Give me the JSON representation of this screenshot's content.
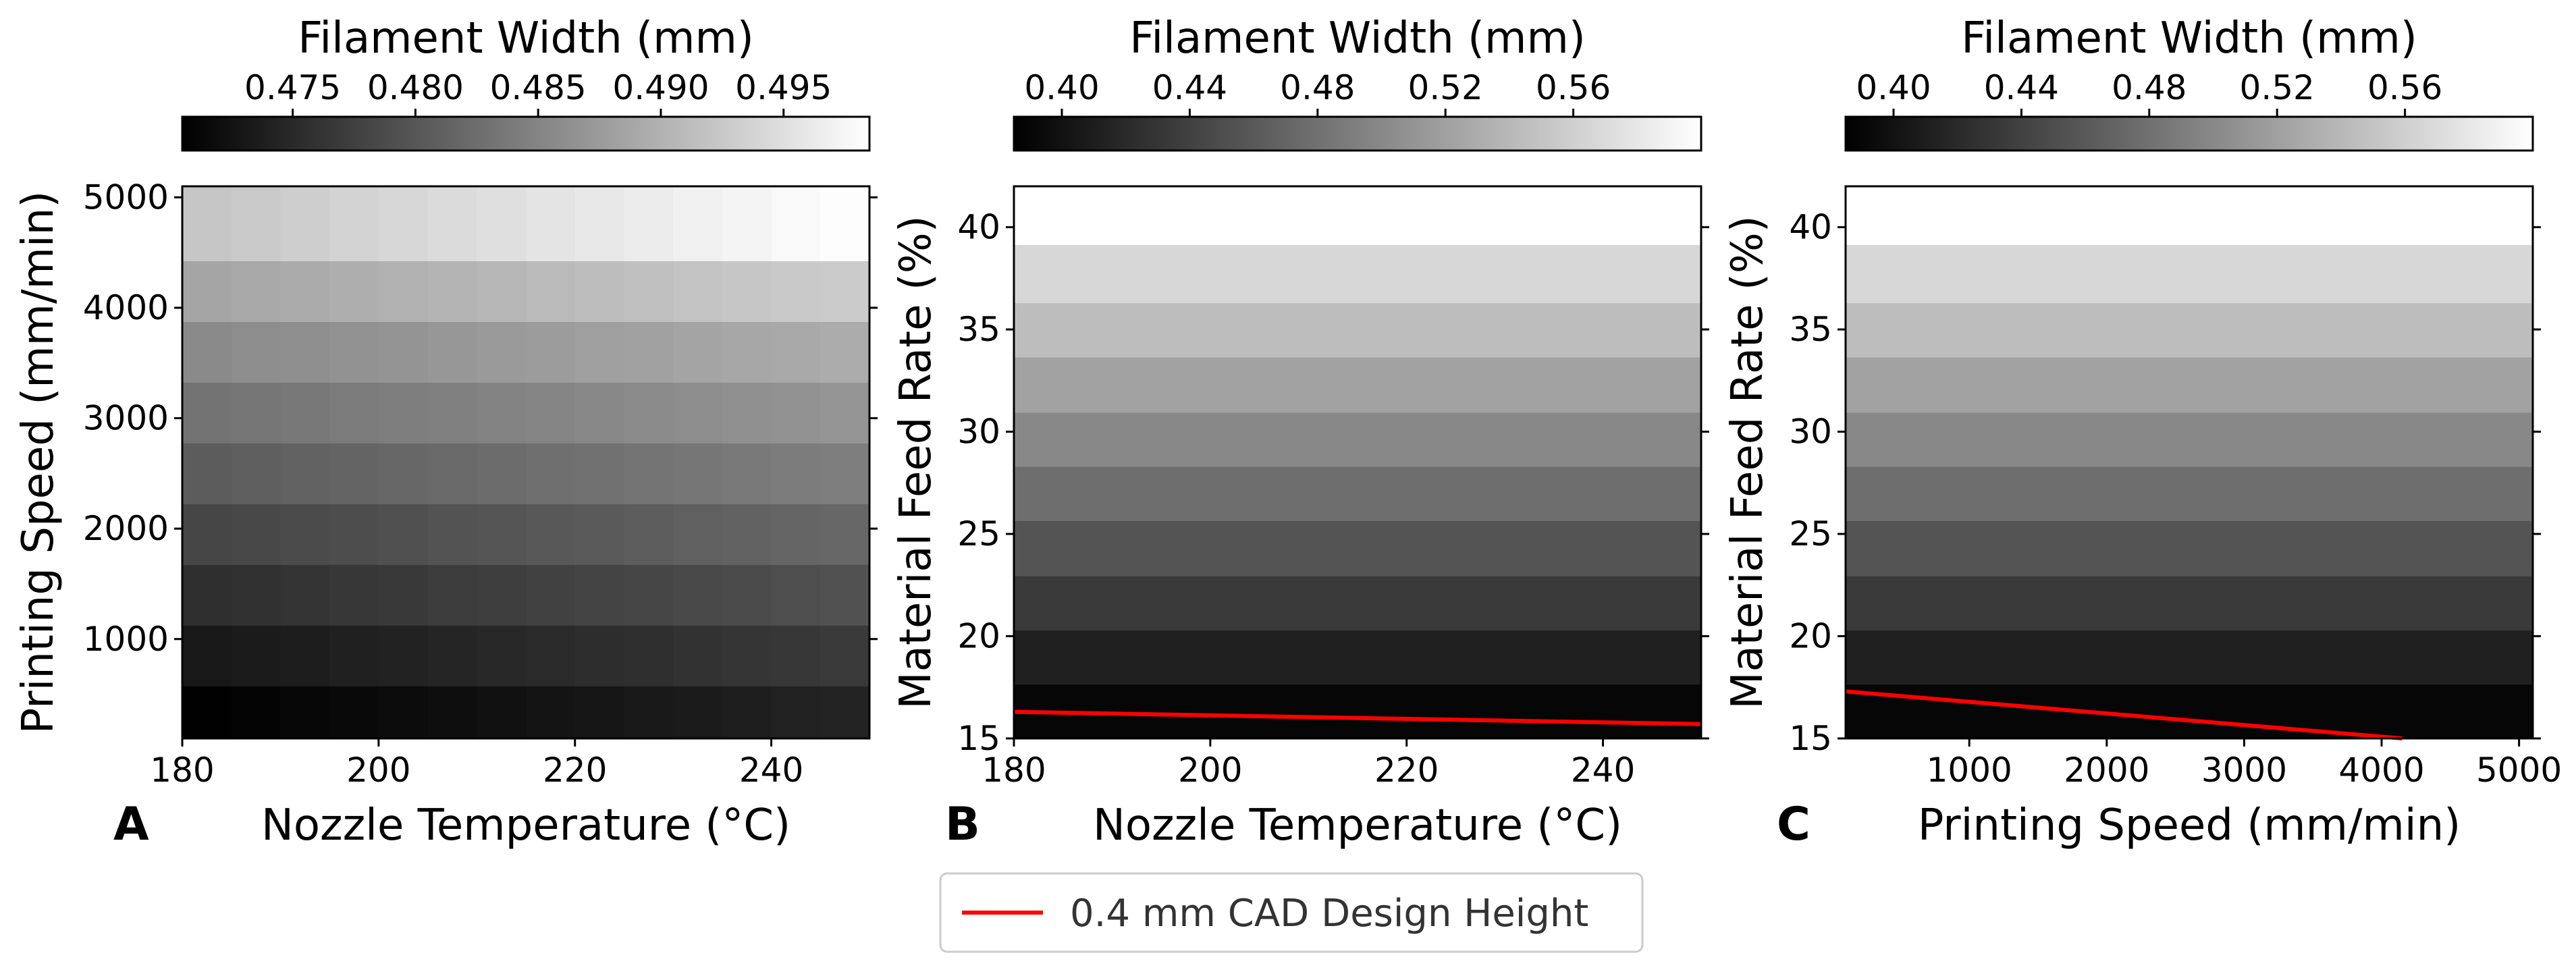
{
  "legend": {
    "label": "0.4 mm CAD Design Height",
    "color": "#ff0000"
  },
  "chart_data": [
    {
      "type": "heatmap",
      "panel": "A",
      "colormap": "gray",
      "colorbar": {
        "title": "Filament Width (mm)",
        "range": [
          0.4705,
          0.4985
        ],
        "ticks": [
          0.475,
          0.48,
          0.485,
          0.49,
          0.495
        ],
        "tick_labels": [
          "0.475",
          "0.480",
          "0.485",
          "0.490",
          "0.495"
        ]
      },
      "xlabel": "Nozzle Temperature (°C)",
      "ylabel": "Printing Speed (mm/min)",
      "xlim": [
        180,
        250
      ],
      "ylim": [
        100,
        5100
      ],
      "xticks": [
        180,
        200,
        220,
        240
      ],
      "yticks": [
        1000,
        2000,
        3000,
        4000,
        5000
      ],
      "x": [
        180,
        190,
        200,
        210,
        220,
        230,
        240,
        250
      ],
      "y": [
        300,
        850,
        1400,
        1950,
        2500,
        3050,
        3600,
        4150,
        4700
      ],
      "z_left": [
        0.4705,
        0.473,
        0.4755,
        0.478,
        0.4805,
        0.483,
        0.4855,
        0.4885,
        0.492
      ],
      "z_right": [
        0.4745,
        0.477,
        0.4795,
        0.482,
        0.4845,
        0.487,
        0.4895,
        0.493,
        0.4985
      ],
      "overlay_line": null
    },
    {
      "type": "heatmap",
      "panel": "B",
      "colormap": "gray",
      "colorbar": {
        "title": "Filament Width (mm)",
        "range": [
          0.385,
          0.6
        ],
        "ticks": [
          0.4,
          0.44,
          0.48,
          0.52,
          0.56
        ],
        "tick_labels": [
          "0.40",
          "0.44",
          "0.48",
          "0.52",
          "0.56"
        ]
      },
      "xlabel": "Nozzle Temperature (°C)",
      "ylabel": "Material Feed Rate (%)",
      "xlim": [
        180,
        250
      ],
      "ylim": [
        15,
        42
      ],
      "xticks": [
        180,
        200,
        220,
        240
      ],
      "yticks": [
        15,
        20,
        25,
        30,
        35,
        40
      ],
      "x": [
        180,
        250
      ],
      "y": [
        16.3,
        19.0,
        21.6,
        24.3,
        27.0,
        29.6,
        32.3,
        35.0,
        37.6,
        40.7
      ],
      "z": [
        0.39,
        0.412,
        0.434,
        0.456,
        0.478,
        0.5,
        0.522,
        0.544,
        0.566,
        0.6
      ],
      "overlay_line": {
        "name": "0.4 mm CAD Design Height",
        "x": [
          180,
          250
        ],
        "y": [
          16.3,
          15.7
        ]
      }
    },
    {
      "type": "heatmap",
      "panel": "C",
      "colormap": "gray",
      "colorbar": {
        "title": "Filament Width (mm)",
        "range": [
          0.385,
          0.6
        ],
        "ticks": [
          0.4,
          0.44,
          0.48,
          0.52,
          0.56
        ],
        "tick_labels": [
          "0.40",
          "0.44",
          "0.48",
          "0.52",
          "0.56"
        ]
      },
      "xlabel": "Printing Speed (mm/min)",
      "ylabel": "Material Feed Rate (%)",
      "xlim": [
        100,
        5100
      ],
      "ylim": [
        15,
        42
      ],
      "xticks": [
        1000,
        2000,
        3000,
        4000,
        5000
      ],
      "yticks": [
        15,
        20,
        25,
        30,
        35,
        40
      ],
      "x": [
        100,
        5100
      ],
      "y": [
        16.3,
        19.0,
        21.6,
        24.3,
        27.0,
        29.6,
        32.3,
        35.0,
        37.6,
        40.7
      ],
      "z": [
        0.39,
        0.412,
        0.434,
        0.456,
        0.478,
        0.5,
        0.522,
        0.544,
        0.566,
        0.6
      ],
      "overlay_line": {
        "name": "0.4 mm CAD Design Height",
        "x": [
          100,
          4150
        ],
        "y": [
          17.3,
          15.0
        ]
      }
    }
  ]
}
